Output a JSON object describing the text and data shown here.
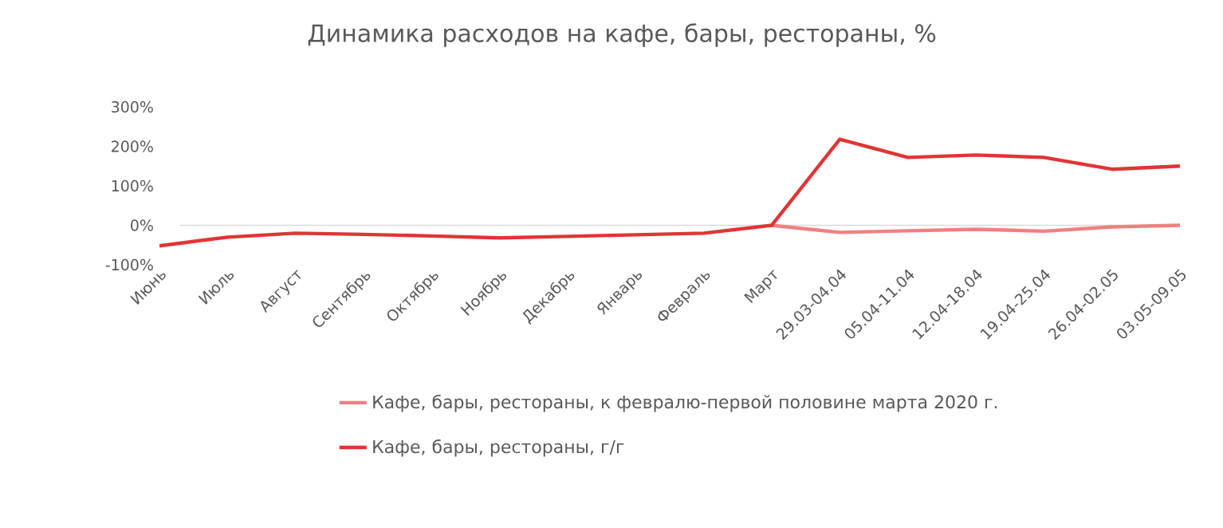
{
  "chart_data": {
    "type": "line",
    "title": "Динамика расходов на кафе, бары, рестораны, %",
    "categories": [
      "Июнь",
      "Июль",
      "Август",
      "Сентябрь",
      "Октябрь",
      "Ноябрь",
      "Декабрь",
      "Январь",
      "Февраль",
      "Март",
      "29.03-04.04",
      "05.04-11.04",
      "12.04-18.04",
      "19.04-25.04",
      "26.04-02.05",
      "03.05-09.05"
    ],
    "series": [
      {
        "name": "Кафе, бары, рестораны, к февралю-первой половине марта 2020 г.",
        "color": "#f08080",
        "values": [
          null,
          null,
          null,
          null,
          null,
          null,
          null,
          null,
          null,
          0,
          -18,
          -14,
          -10,
          -15,
          -4,
          0
        ]
      },
      {
        "name": "Кафе, бары, рестораны, г/г",
        "color": "#e03535",
        "values": [
          -52,
          -30,
          -20,
          -23,
          -27,
          -32,
          -28,
          -24,
          -20,
          0,
          218,
          172,
          178,
          172,
          142,
          150
        ]
      }
    ],
    "ylim": [
      -100,
      300
    ],
    "yticks": [
      {
        "value": -100,
        "label": "-100%"
      },
      {
        "value": 0,
        "label": "0%"
      },
      {
        "value": 100,
        "label": "100%"
      },
      {
        "value": 200,
        "label": "200%"
      },
      {
        "value": 300,
        "label": "300%"
      }
    ],
    "ref_lines": [
      {
        "axis": "y",
        "value": 0,
        "color": "#d9d9d9"
      }
    ],
    "legend": "bottom",
    "marker": "none",
    "line_style": "solid"
  }
}
